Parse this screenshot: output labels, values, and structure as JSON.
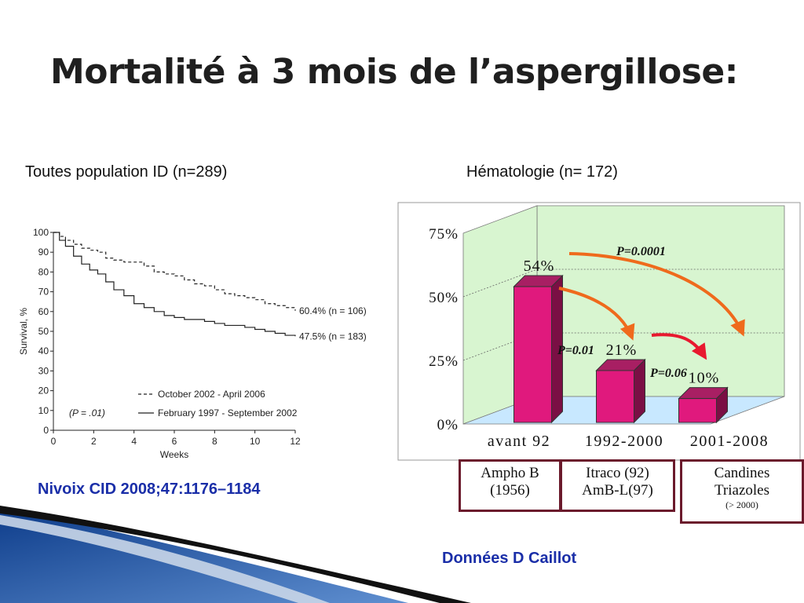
{
  "slide": {
    "title": "Mortalité à 3 mois de l’aspergillose:",
    "subtitle_left": "Toutes population ID (n=289)",
    "subtitle_right": "Hématologie (n= 172)",
    "citation": "Nivoix CID 2008;47:1176–1184",
    "credit": "Données D Caillot"
  },
  "eras": [
    {
      "line1": "Ampho B",
      "line2": "(1956)",
      "line3": ""
    },
    {
      "line1": "Itraco (92)",
      "line2": "AmB-L(97)",
      "line3": ""
    },
    {
      "line1": "Candines",
      "line2": "Triazoles",
      "line3": "(> 2000)"
    }
  ],
  "chart_data": [
    {
      "type": "line",
      "xlabel": "Weeks",
      "ylabel": "Survival, %",
      "xlim": [
        0,
        12
      ],
      "ylim": [
        0,
        100
      ],
      "x_ticks": [
        "0",
        "2",
        "4",
        "6",
        "8",
        "10",
        "12"
      ],
      "y_ticks": [
        "0",
        "10",
        "20",
        "30",
        "40",
        "50",
        "60",
        "70",
        "80",
        "90",
        "100"
      ],
      "p_value": "(P = .01)",
      "series": [
        {
          "name": "October 2002 - April 2006",
          "dash": "dashed",
          "end_label": "60.4% (n = 106)",
          "x": [
            0,
            0.3,
            0.6,
            1,
            1.4,
            1.8,
            2.2,
            2.6,
            3,
            3.5,
            4,
            4.5,
            5,
            5.5,
            6,
            6.5,
            7,
            7.5,
            8,
            8.5,
            9,
            9.5,
            10,
            10.5,
            11,
            11.5,
            12
          ],
          "y": [
            100,
            98,
            96,
            94,
            92,
            91,
            90,
            87,
            86,
            85,
            85,
            83,
            80,
            79,
            78,
            76,
            74,
            73,
            71,
            69,
            68,
            67,
            66,
            64,
            63,
            62,
            60.4
          ]
        },
        {
          "name": "February 1997 - September 2002",
          "dash": "solid",
          "end_label": "47.5% (n = 183)",
          "x": [
            0,
            0.3,
            0.6,
            1,
            1.4,
            1.8,
            2.2,
            2.6,
            3,
            3.5,
            4,
            4.5,
            5,
            5.5,
            6,
            6.5,
            7,
            7.5,
            8,
            8.5,
            9,
            9.5,
            10,
            10.5,
            11,
            11.5,
            12
          ],
          "y": [
            100,
            96,
            93,
            88,
            84,
            81,
            79,
            75,
            71,
            68,
            64,
            62,
            60,
            58,
            57,
            56,
            56,
            55,
            54,
            53,
            53,
            52,
            51,
            50,
            49,
            48,
            47.5
          ]
        }
      ]
    },
    {
      "type": "bar",
      "categories": [
        "avant 92",
        "1992-2000",
        "2001-2008"
      ],
      "values": [
        54,
        21,
        10
      ],
      "value_labels": [
        "54%",
        "21%",
        "10%"
      ],
      "ylim": [
        0,
        75
      ],
      "y_ticks": [
        "0%",
        "25%",
        "50%",
        "75%"
      ],
      "bar_color": "#e0197d",
      "wall_color": "#d8f5d0",
      "annotations": [
        {
          "label": "P=0.0001",
          "from": "avant 92",
          "to": "2001-2008",
          "color": "#ef6a1c"
        },
        {
          "label": "P=0.01",
          "from": "avant 92",
          "to": "1992-2000",
          "color": "#ef6a1c"
        },
        {
          "label": "P=0.06",
          "from": "1992-2000",
          "to": "2001-2008",
          "color": "#e8192f"
        }
      ]
    }
  ]
}
